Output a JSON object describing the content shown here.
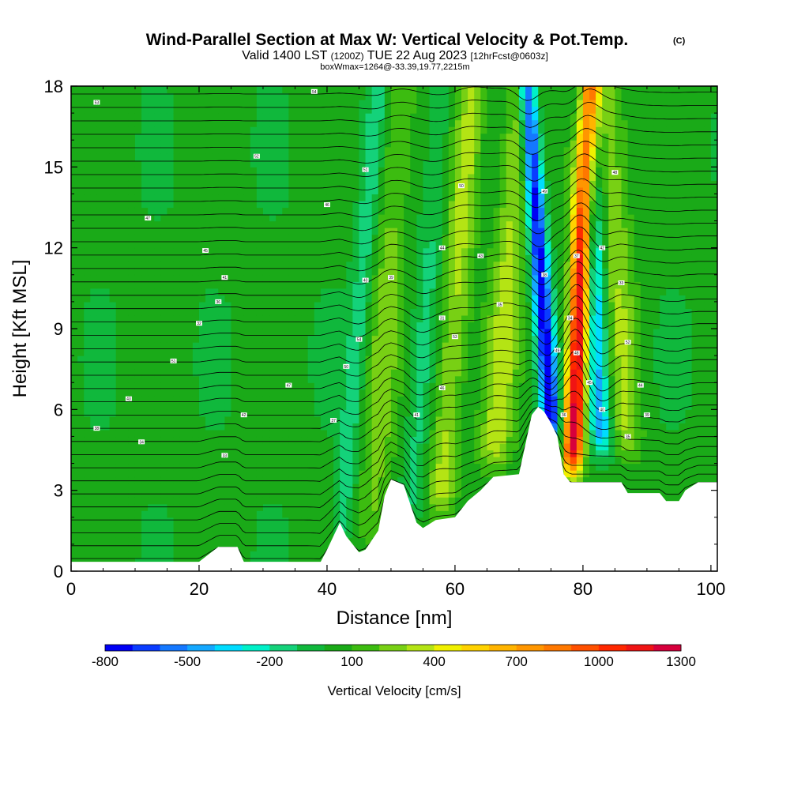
{
  "header": {
    "title_main": "Wind-Parallel Section at Max W: Vertical Velocity & Pot.Temp.",
    "title_mark": "(C)",
    "valid_prefix": "Valid 1400 LST",
    "valid_zulu": "(1200Z)",
    "valid_date": "TUE 22 Aug 2023",
    "valid_fcst": "[12hrFcst@0603z]",
    "box_info": "boxWmax=1264@-33.39,19.77,2215m"
  },
  "chart_data": {
    "type": "heatmap",
    "xlabel": "Distance [nm]",
    "ylabel": "Height [Kft MSL]",
    "xlim": [
      0,
      101
    ],
    "ylim": [
      0,
      18
    ],
    "x_ticks": [
      0,
      20,
      40,
      60,
      80,
      100
    ],
    "y_ticks": [
      0,
      3,
      6,
      9,
      12,
      15,
      18
    ],
    "x_tick_labels": [
      "0",
      "20",
      "40",
      "60",
      "80",
      "100"
    ],
    "y_tick_labels": [
      "0",
      "3",
      "6",
      "9",
      "12",
      "15",
      "18"
    ],
    "terrain_kft": [
      [
        0,
        0.35
      ],
      [
        10,
        0.35
      ],
      [
        20,
        0.35
      ],
      [
        23,
        0.9
      ],
      [
        26,
        0.9
      ],
      [
        27,
        0.35
      ],
      [
        39,
        0.35
      ],
      [
        40,
        0.8
      ],
      [
        42,
        1.8
      ],
      [
        43,
        1.3
      ],
      [
        45,
        0.7
      ],
      [
        46,
        0.8
      ],
      [
        48,
        1.5
      ],
      [
        49,
        2.8
      ],
      [
        50,
        3.4
      ],
      [
        52,
        3.2
      ],
      [
        53,
        2.5
      ],
      [
        54,
        1.8
      ],
      [
        55,
        1.6
      ],
      [
        57,
        1.9
      ],
      [
        60,
        2.0
      ],
      [
        62,
        2.6
      ],
      [
        64,
        3.0
      ],
      [
        66,
        3.5
      ],
      [
        70,
        3.6
      ],
      [
        71,
        4.7
      ],
      [
        72,
        5.8
      ],
      [
        73,
        6.1
      ],
      [
        74,
        5.9
      ],
      [
        75,
        5.5
      ],
      [
        76,
        5.0
      ],
      [
        77,
        3.6
      ],
      [
        78,
        3.3
      ],
      [
        80,
        3.3
      ],
      [
        86,
        3.3
      ],
      [
        87,
        2.9
      ],
      [
        92,
        2.9
      ],
      [
        93,
        2.6
      ],
      [
        95,
        2.6
      ],
      [
        96,
        3.0
      ],
      [
        98,
        3.3
      ],
      [
        101,
        3.3
      ]
    ],
    "w_cores": [
      {
        "x": 42,
        "z_from": 0.7,
        "z_to": 18,
        "tilt": 0.35,
        "width": 1.6,
        "w": -200
      },
      {
        "x": 47,
        "z_from": 0.8,
        "z_to": 18,
        "tilt": 0.25,
        "width": 2.5,
        "w": 200
      },
      {
        "x": 53,
        "z_from": 1.6,
        "z_to": 18,
        "tilt": 0.3,
        "width": 1.8,
        "w": -150
      },
      {
        "x": 57.5,
        "z_from": 2.0,
        "z_to": 18,
        "tilt": 0.33,
        "width": 2.2,
        "w": 300
      },
      {
        "x": 66,
        "z_from": 3.5,
        "z_to": 18,
        "tilt": 0.3,
        "width": 2.5,
        "w": 300
      },
      {
        "x": 75.3,
        "z_from": 4.6,
        "z_to": 18,
        "tilt": -0.3,
        "width": 1.4,
        "w": -800
      },
      {
        "x": 78.3,
        "z_from": 3.5,
        "z_to": 18,
        "tilt": 0.18,
        "width": 1.6,
        "w": 1250
      },
      {
        "x": 83,
        "z_from": 4.2,
        "z_to": 18,
        "tilt": -0.2,
        "width": 1.8,
        "w": -500
      },
      {
        "x": 87,
        "z_from": 4.0,
        "z_to": 18,
        "tilt": -0.2,
        "width": 2.4,
        "w": 250
      }
    ],
    "theta_range_c": [
      25,
      55
    ],
    "theta_label_values": [
      "53",
      "54",
      "52",
      "51",
      "50",
      "49",
      "48",
      "47",
      "46",
      "45",
      "44",
      "43",
      "42",
      "41",
      "40",
      "39",
      "38",
      "37",
      "36",
      "35",
      "34",
      "33",
      "32",
      "31"
    ],
    "colorbar": {
      "levels": [
        -800,
        -700,
        -600,
        -500,
        -400,
        -300,
        -200,
        -100,
        0,
        100,
        200,
        300,
        400,
        500,
        600,
        700,
        800,
        900,
        1000,
        1100,
        1200,
        1300
      ],
      "colors": [
        "#0000f5",
        "#0a3cff",
        "#1478ff",
        "#14a8ff",
        "#00dcff",
        "#00f0c8",
        "#14d27a",
        "#10b83c",
        "#1aaa18",
        "#3cbc10",
        "#78d014",
        "#b4e414",
        "#f0f000",
        "#ffd200",
        "#ffb400",
        "#ff9600",
        "#ff7800",
        "#ff5000",
        "#ff2800",
        "#f01414",
        "#d7003c"
      ],
      "tick_labels": [
        "-800",
        "-500",
        "-200",
        "100",
        "400",
        "700",
        "1000",
        "1300"
      ],
      "label": "Vertical Velocity [cm/s]"
    }
  }
}
